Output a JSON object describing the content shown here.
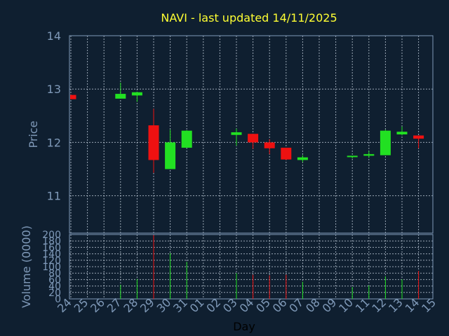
{
  "title": "NAVI - last updated 14/11/2025",
  "colors": {
    "background": "#0f1f30",
    "plot_background": "#0f1f30",
    "title": "#ffff33",
    "axis_text": "#7f99b8",
    "frame": "#7f99b8",
    "grid": "#c8d4e0",
    "up": "#22e022",
    "down": "#ee1111"
  },
  "chart_data": [
    {
      "type": "candlestick",
      "ylabel": "Price",
      "ylim": [
        10.3,
        14.0
      ],
      "y_ticks": [
        11,
        12,
        13,
        14
      ],
      "grid": true,
      "x_ticks": [
        "24",
        "25",
        "26",
        "27",
        "28",
        "29",
        "30",
        "31",
        "01",
        "02",
        "03",
        "04",
        "05",
        "06",
        "07",
        "08",
        "09",
        "10",
        "11",
        "12",
        "13",
        "14",
        "15"
      ],
      "candles": [
        {
          "day": "24",
          "open": 12.89,
          "high": 12.89,
          "low": 12.81,
          "close": 12.81
        },
        {
          "day": "27",
          "open": 12.82,
          "high": 13.12,
          "low": 12.82,
          "close": 12.91
        },
        {
          "day": "28",
          "open": 12.88,
          "high": 12.95,
          "low": 12.76,
          "close": 12.94
        },
        {
          "day": "29",
          "open": 12.32,
          "high": 12.63,
          "low": 11.43,
          "close": 11.67
        },
        {
          "day": "30",
          "open": 11.5,
          "high": 12.24,
          "low": 11.5,
          "close": 12.0
        },
        {
          "day": "31",
          "open": 11.9,
          "high": 12.23,
          "low": 11.9,
          "close": 12.22
        },
        {
          "day": "03",
          "open": 12.14,
          "high": 12.26,
          "low": 11.94,
          "close": 12.19
        },
        {
          "day": "04",
          "open": 12.16,
          "high": 12.16,
          "low": 11.88,
          "close": 12.0
        },
        {
          "day": "05",
          "open": 12.0,
          "high": 12.06,
          "low": 11.78,
          "close": 11.89
        },
        {
          "day": "06",
          "open": 11.9,
          "high": 11.9,
          "low": 11.67,
          "close": 11.68
        },
        {
          "day": "07",
          "open": 11.67,
          "high": 11.76,
          "low": 11.63,
          "close": 11.72
        },
        {
          "day": "10",
          "open": 11.73,
          "high": 11.75,
          "low": 11.7,
          "close": 11.75
        },
        {
          "day": "11",
          "open": 11.75,
          "high": 11.84,
          "low": 11.71,
          "close": 11.78
        },
        {
          "day": "12",
          "open": 11.76,
          "high": 12.24,
          "low": 11.76,
          "close": 12.22
        },
        {
          "day": "13",
          "open": 12.15,
          "high": 12.3,
          "low": 12.13,
          "close": 12.2
        },
        {
          "day": "14",
          "open": 12.13,
          "high": 12.13,
          "low": 11.89,
          "close": 12.07
        }
      ]
    },
    {
      "type": "bar",
      "ylabel": "Volume (0000)",
      "xlabel": "Day",
      "ylim": [
        0,
        200
      ],
      "y_ticks": [
        0,
        20,
        40,
        60,
        80,
        100,
        120,
        140,
        160,
        180,
        200
      ],
      "grid": true,
      "bars": [
        {
          "day": "24",
          "value": 0,
          "direction": "down"
        },
        {
          "day": "27",
          "value": 44,
          "direction": "up"
        },
        {
          "day": "28",
          "value": 62,
          "direction": "up"
        },
        {
          "day": "29",
          "value": 198,
          "direction": "down"
        },
        {
          "day": "30",
          "value": 142,
          "direction": "up"
        },
        {
          "day": "31",
          "value": 115,
          "direction": "up"
        },
        {
          "day": "03",
          "value": 80,
          "direction": "up"
        },
        {
          "day": "04",
          "value": 75,
          "direction": "down"
        },
        {
          "day": "05",
          "value": 73,
          "direction": "down"
        },
        {
          "day": "06",
          "value": 75,
          "direction": "down"
        },
        {
          "day": "07",
          "value": 53,
          "direction": "up"
        },
        {
          "day": "10",
          "value": 37,
          "direction": "up"
        },
        {
          "day": "11",
          "value": 42,
          "direction": "up"
        },
        {
          "day": "12",
          "value": 70,
          "direction": "up"
        },
        {
          "day": "13",
          "value": 61,
          "direction": "up"
        },
        {
          "day": "14",
          "value": 87,
          "direction": "down"
        }
      ]
    }
  ]
}
